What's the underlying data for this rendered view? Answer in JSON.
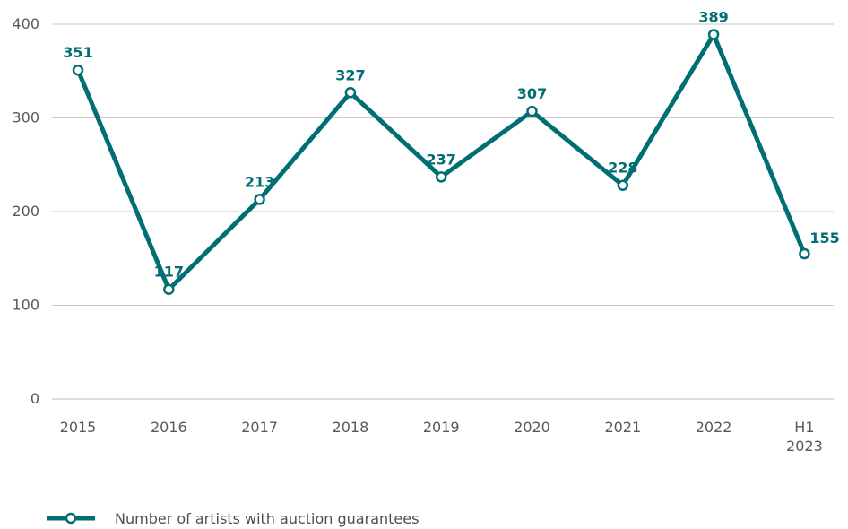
{
  "chart_data": {
    "type": "line",
    "categories": [
      "2015",
      "2016",
      "2017",
      "2018",
      "2019",
      "2020",
      "2021",
      "2022",
      "H1\n2023"
    ],
    "series": [
      {
        "name": "Number of artists with auction guarantees",
        "values": [
          351,
          117,
          213,
          327,
          237,
          307,
          228,
          389,
          155
        ]
      }
    ],
    "ylim": [
      0,
      400
    ],
    "yticks": [
      0,
      100,
      200,
      300,
      400
    ],
    "grid": true,
    "legend": "bottom-left",
    "data_labels": true,
    "color": "#006e73"
  }
}
